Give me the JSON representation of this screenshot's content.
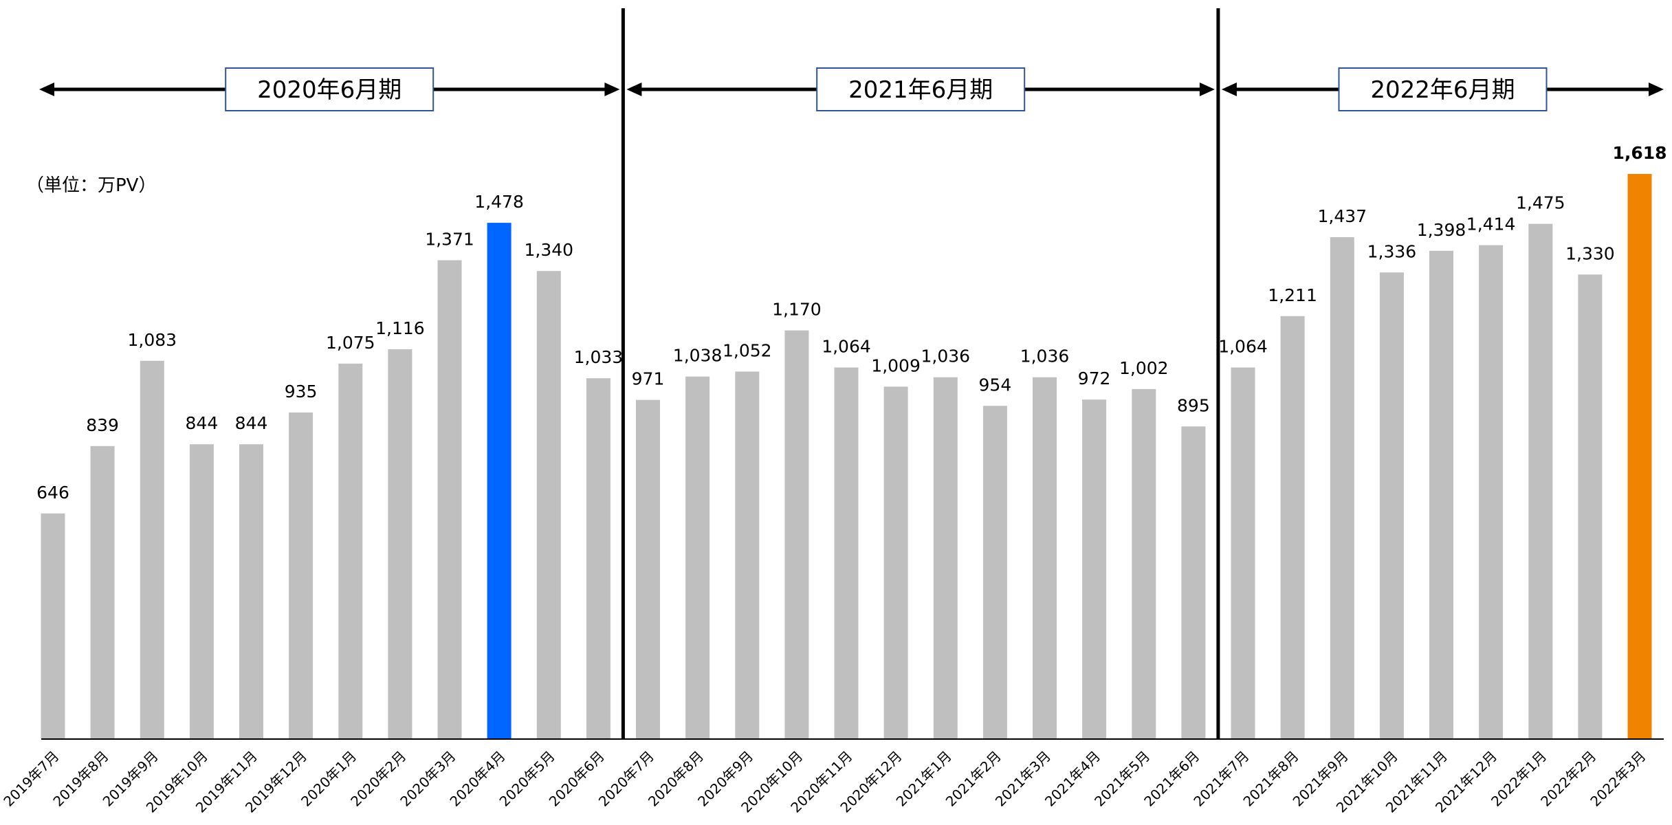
{
  "chart_data": {
    "type": "bar",
    "unit_label": "（単位：万PV）",
    "categories": [
      "2019年7月",
      "2019年8月",
      "2019年9月",
      "2019年10月",
      "2019年11月",
      "2019年12月",
      "2020年1月",
      "2020年2月",
      "2020年3月",
      "2020年4月",
      "2020年5月",
      "2020年6月",
      "2020年7月",
      "2020年8月",
      "2020年9月",
      "2020年10月",
      "2020年11月",
      "2020年12月",
      "2021年1月",
      "2021年2月",
      "2021年3月",
      "2021年4月",
      "2021年5月",
      "2021年6月",
      "2021年7月",
      "2021年8月",
      "2021年9月",
      "2021年10月",
      "2021年11月",
      "2021年12月",
      "2022年1月",
      "2022年2月",
      "2022年3月"
    ],
    "values": [
      646,
      839,
      1083,
      844,
      844,
      935,
      1075,
      1116,
      1371,
      1478,
      1340,
      1033,
      971,
      1038,
      1052,
      1170,
      1064,
      1009,
      1036,
      954,
      1036,
      972,
      1002,
      895,
      1064,
      1211,
      1437,
      1336,
      1398,
      1414,
      1475,
      1330,
      1618
    ],
    "value_labels": [
      "646",
      "839",
      "1,083",
      "844",
      "844",
      "935",
      "1,075",
      "1,116",
      "1,371",
      "1,478",
      "1,340",
      "1,033",
      "971",
      "1,038",
      "1,052",
      "1,170",
      "1,064",
      "1,009",
      "1,036",
      "954",
      "1,036",
      "972",
      "1,002",
      "895",
      "1,064",
      "1,211",
      "1,437",
      "1,336",
      "1,398",
      "1,414",
      "1,475",
      "1,330",
      "1,618"
    ],
    "ylim": [
      0,
      1618
    ],
    "grid": false,
    "colors": {
      "default_bar": "#bfbfbf",
      "highlight_bar_2020_4": "#0066ff",
      "highlight_label_2020_4": "#1a6eff",
      "highlight_bar_2022_3": "#f08300",
      "highlight_label_2022_3": "#ff0000",
      "text": "#000000",
      "period_box_border": "#2f5597"
    },
    "highlights": [
      {
        "index": 9,
        "bar_color": "#0066ff",
        "label_color": "#1a6eff",
        "label_bold": false
      },
      {
        "index": 32,
        "bar_color": "#f08300",
        "label_color": "#ff0000",
        "label_bold": true
      }
    ],
    "periods": [
      {
        "label": "2020年6月期",
        "start_index": 0,
        "end_index": 11
      },
      {
        "label": "2021年6月期",
        "start_index": 12,
        "end_index": 23
      },
      {
        "label": "2022年6月期",
        "start_index": 24,
        "end_index": 32
      }
    ]
  }
}
